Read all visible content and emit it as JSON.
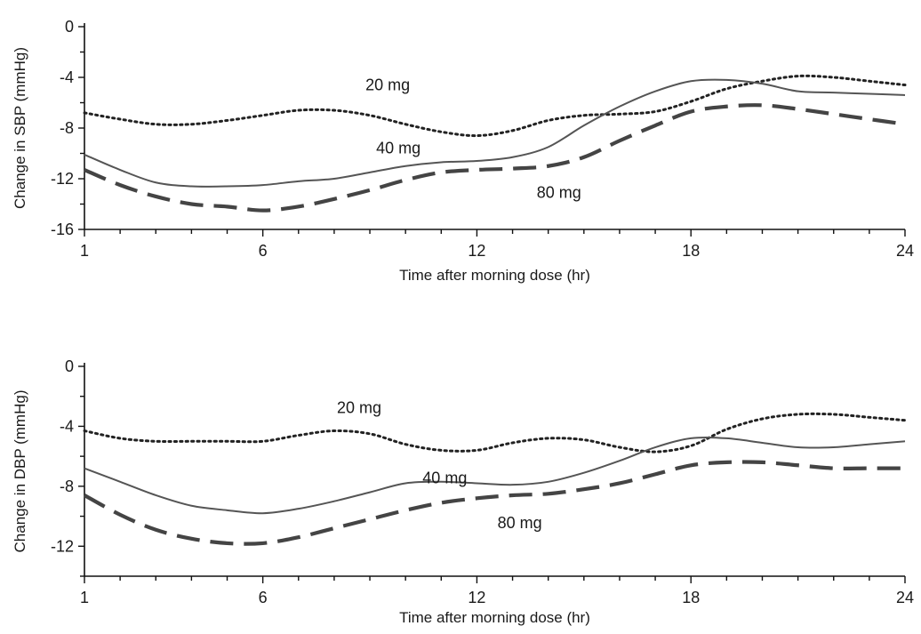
{
  "chart_data": [
    {
      "type": "line",
      "xlabel": "Time after morning dose (hr)",
      "ylabel": "Change in SBP (mmHg)",
      "xlim": [
        1,
        24
      ],
      "ylim": [
        -16,
        0
      ],
      "x_ticks": [
        1,
        6,
        12,
        18,
        24
      ],
      "y_ticks": [
        0,
        -4,
        -8,
        -12,
        -16
      ],
      "grid": false,
      "series": [
        {
          "name": "20 mg",
          "style": "dotted",
          "color": "#222222",
          "points": [
            [
              1,
              -6.8
            ],
            [
              2,
              -7.3
            ],
            [
              3,
              -7.7
            ],
            [
              4,
              -7.7
            ],
            [
              5,
              -7.4
            ],
            [
              6,
              -7.0
            ],
            [
              7,
              -6.6
            ],
            [
              8,
              -6.6
            ],
            [
              9,
              -7.0
            ],
            [
              10,
              -7.7
            ],
            [
              11,
              -8.3
            ],
            [
              12,
              -8.6
            ],
            [
              13,
              -8.2
            ],
            [
              14,
              -7.4
            ],
            [
              15,
              -7.0
            ],
            [
              16,
              -6.9
            ],
            [
              17,
              -6.7
            ],
            [
              18,
              -5.9
            ],
            [
              19,
              -4.9
            ],
            [
              20,
              -4.3
            ],
            [
              21,
              -3.9
            ],
            [
              22,
              -4.0
            ],
            [
              23,
              -4.3
            ],
            [
              24,
              -4.6
            ]
          ]
        },
        {
          "name": "40 mg",
          "style": "solid",
          "color": "#555555",
          "points": [
            [
              1,
              -10.1
            ],
            [
              2,
              -11.3
            ],
            [
              3,
              -12.3
            ],
            [
              4,
              -12.6
            ],
            [
              5,
              -12.6
            ],
            [
              6,
              -12.5
            ],
            [
              7,
              -12.2
            ],
            [
              8,
              -12.0
            ],
            [
              9,
              -11.5
            ],
            [
              10,
              -11.0
            ],
            [
              11,
              -10.7
            ],
            [
              12,
              -10.6
            ],
            [
              13,
              -10.3
            ],
            [
              14,
              -9.5
            ],
            [
              15,
              -7.8
            ],
            [
              16,
              -6.3
            ],
            [
              17,
              -5.1
            ],
            [
              18,
              -4.3
            ],
            [
              19,
              -4.2
            ],
            [
              20,
              -4.5
            ],
            [
              21,
              -5.1
            ],
            [
              22,
              -5.2
            ],
            [
              23,
              -5.3
            ],
            [
              24,
              -5.4
            ]
          ]
        },
        {
          "name": "80 mg",
          "style": "dashed",
          "color": "#444444",
          "points": [
            [
              1,
              -11.3
            ],
            [
              2,
              -12.5
            ],
            [
              3,
              -13.4
            ],
            [
              4,
              -14.0
            ],
            [
              5,
              -14.2
            ],
            [
              6,
              -14.5
            ],
            [
              7,
              -14.2
            ],
            [
              8,
              -13.6
            ],
            [
              9,
              -12.9
            ],
            [
              10,
              -12.1
            ],
            [
              11,
              -11.5
            ],
            [
              12,
              -11.3
            ],
            [
              13,
              -11.2
            ],
            [
              14,
              -11.0
            ],
            [
              15,
              -10.3
            ],
            [
              16,
              -9.0
            ],
            [
              17,
              -7.8
            ],
            [
              18,
              -6.7
            ],
            [
              19,
              -6.3
            ],
            [
              20,
              -6.2
            ],
            [
              21,
              -6.5
            ],
            [
              22,
              -6.9
            ],
            [
              23,
              -7.3
            ],
            [
              24,
              -7.7
            ]
          ]
        }
      ],
      "annotations": [
        {
          "text": "20 mg",
          "x": 9.5,
          "y": -5.0
        },
        {
          "text": "40 mg",
          "x": 9.8,
          "y": -10.0
        },
        {
          "text": "80 mg",
          "x": 14.3,
          "y": -13.5
        }
      ]
    },
    {
      "type": "line",
      "xlabel": "Time after morning dose (hr)",
      "ylabel": "Change in DBP (mmHg)",
      "xlim": [
        1,
        24
      ],
      "ylim": [
        -14,
        0
      ],
      "x_ticks": [
        1,
        6,
        12,
        18,
        24
      ],
      "y_ticks": [
        0,
        -4,
        -8,
        -12
      ],
      "grid": false,
      "series": [
        {
          "name": "20 mg",
          "style": "dotted",
          "color": "#222222",
          "points": [
            [
              1,
              -4.3
            ],
            [
              2,
              -4.8
            ],
            [
              3,
              -5.0
            ],
            [
              4,
              -5.0
            ],
            [
              5,
              -5.0
            ],
            [
              6,
              -5.0
            ],
            [
              7,
              -4.6
            ],
            [
              8,
              -4.3
            ],
            [
              9,
              -4.5
            ],
            [
              10,
              -5.2
            ],
            [
              11,
              -5.6
            ],
            [
              12,
              -5.6
            ],
            [
              13,
              -5.1
            ],
            [
              14,
              -4.8
            ],
            [
              15,
              -4.9
            ],
            [
              16,
              -5.4
            ],
            [
              17,
              -5.7
            ],
            [
              18,
              -5.3
            ],
            [
              19,
              -4.2
            ],
            [
              20,
              -3.5
            ],
            [
              21,
              -3.2
            ],
            [
              22,
              -3.2
            ],
            [
              23,
              -3.4
            ],
            [
              24,
              -3.6
            ]
          ]
        },
        {
          "name": "40 mg",
          "style": "solid",
          "color": "#555555",
          "points": [
            [
              1,
              -6.8
            ],
            [
              2,
              -7.7
            ],
            [
              3,
              -8.6
            ],
            [
              4,
              -9.3
            ],
            [
              5,
              -9.6
            ],
            [
              6,
              -9.8
            ],
            [
              7,
              -9.5
            ],
            [
              8,
              -9.0
            ],
            [
              9,
              -8.4
            ],
            [
              10,
              -7.8
            ],
            [
              11,
              -7.7
            ],
            [
              12,
              -7.8
            ],
            [
              13,
              -7.9
            ],
            [
              14,
              -7.7
            ],
            [
              15,
              -7.1
            ],
            [
              16,
              -6.3
            ],
            [
              17,
              -5.4
            ],
            [
              18,
              -4.8
            ],
            [
              19,
              -4.8
            ],
            [
              20,
              -5.1
            ],
            [
              21,
              -5.4
            ],
            [
              22,
              -5.4
            ],
            [
              23,
              -5.2
            ],
            [
              24,
              -5.0
            ]
          ]
        },
        {
          "name": "80 mg",
          "style": "dashed",
          "color": "#444444",
          "points": [
            [
              1,
              -8.6
            ],
            [
              2,
              -9.9
            ],
            [
              3,
              -10.9
            ],
            [
              4,
              -11.5
            ],
            [
              5,
              -11.8
            ],
            [
              6,
              -11.8
            ],
            [
              7,
              -11.4
            ],
            [
              8,
              -10.8
            ],
            [
              9,
              -10.2
            ],
            [
              10,
              -9.6
            ],
            [
              11,
              -9.1
            ],
            [
              12,
              -8.8
            ],
            [
              13,
              -8.6
            ],
            [
              14,
              -8.5
            ],
            [
              15,
              -8.2
            ],
            [
              16,
              -7.8
            ],
            [
              17,
              -7.2
            ],
            [
              18,
              -6.6
            ],
            [
              19,
              -6.4
            ],
            [
              20,
              -6.4
            ],
            [
              21,
              -6.6
            ],
            [
              22,
              -6.8
            ],
            [
              23,
              -6.8
            ],
            [
              24,
              -6.8
            ]
          ]
        }
      ],
      "annotations": [
        {
          "text": "20 mg",
          "x": 8.7,
          "y": -3.1
        },
        {
          "text": "40 mg",
          "x": 11.1,
          "y": -7.8
        },
        {
          "text": "80 mg",
          "x": 13.2,
          "y": -10.8
        }
      ]
    }
  ]
}
